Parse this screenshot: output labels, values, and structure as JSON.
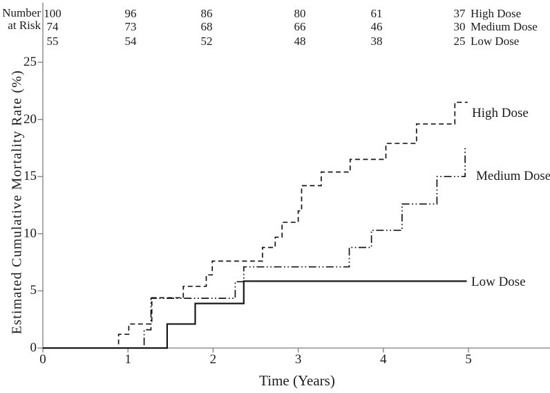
{
  "figure": {
    "at_risk": {
      "label_line1": "Number",
      "label_line2": "at Risk"
    },
    "ylabel": "Estimated Cumulative Mortality Rate (%)",
    "xlabel": "Time (Years)",
    "curve_labels": {
      "high": "High Dose",
      "medium": "Medium Dose",
      "low": "Low Dose"
    },
    "colors": {
      "ink": "#1b1b1b",
      "curve": "#161616",
      "axis": "#7d7d7d"
    }
  },
  "chart_data": {
    "type": "line",
    "variant": "kaplan-meier-cumulative-incidence-steps",
    "title": "",
    "xlabel": "Time (Years)",
    "ylabel": "Estimated Cumulative Mortality Rate (%)",
    "xlim": [
      0,
      6
    ],
    "ylim": [
      0,
      25
    ],
    "xticks": [
      0,
      1,
      2,
      3,
      4,
      5
    ],
    "yticks": [
      0,
      5,
      10,
      15,
      20,
      25
    ],
    "grid": false,
    "legend": "labels-at-line-ends",
    "series": [
      {
        "name": "High Dose",
        "line_style": "dashed",
        "start": [
          0,
          0
        ],
        "end_t": 4.99,
        "steps": [
          [
            0.89,
            1.2
          ],
          [
            1.01,
            2.1
          ],
          [
            1.28,
            4.4
          ],
          [
            1.65,
            5.4
          ],
          [
            1.92,
            6.4
          ],
          [
            1.99,
            7.6
          ],
          [
            2.58,
            8.8
          ],
          [
            2.73,
            9.7
          ],
          [
            2.81,
            11.0
          ],
          [
            3.0,
            12.0
          ],
          [
            3.04,
            14.2
          ],
          [
            3.27,
            15.4
          ],
          [
            3.61,
            16.5
          ],
          [
            4.03,
            17.9
          ],
          [
            4.39,
            19.6
          ],
          [
            4.84,
            21.5
          ]
        ]
      },
      {
        "name": "Medium Dose",
        "line_style": "dash-dot-dot",
        "start": [
          0,
          0
        ],
        "end_t": 4.96,
        "steps": [
          [
            1.19,
            1.6
          ],
          [
            1.27,
            4.35
          ],
          [
            2.26,
            5.8
          ],
          [
            2.36,
            7.1
          ],
          [
            3.6,
            8.8
          ],
          [
            3.86,
            10.3
          ],
          [
            4.22,
            12.6
          ],
          [
            4.63,
            15.0
          ],
          [
            4.96,
            17.7
          ]
        ]
      },
      {
        "name": "Low Dose",
        "line_style": "solid",
        "start": [
          0,
          0
        ],
        "end_t": 4.98,
        "steps": [
          [
            1.46,
            2.1
          ],
          [
            1.79,
            3.9
          ],
          [
            2.36,
            5.85
          ]
        ]
      }
    ],
    "number_at_risk": {
      "times": [
        0,
        1,
        2,
        3,
        4,
        5
      ],
      "groups": [
        {
          "name": "High Dose",
          "counts": [
            100,
            96,
            86,
            80,
            61,
            37
          ]
        },
        {
          "name": "Medium Dose",
          "counts": [
            74,
            73,
            68,
            66,
            46,
            30
          ]
        },
        {
          "name": "Low Dose",
          "counts": [
            55,
            54,
            52,
            48,
            38,
            25
          ]
        }
      ]
    }
  }
}
